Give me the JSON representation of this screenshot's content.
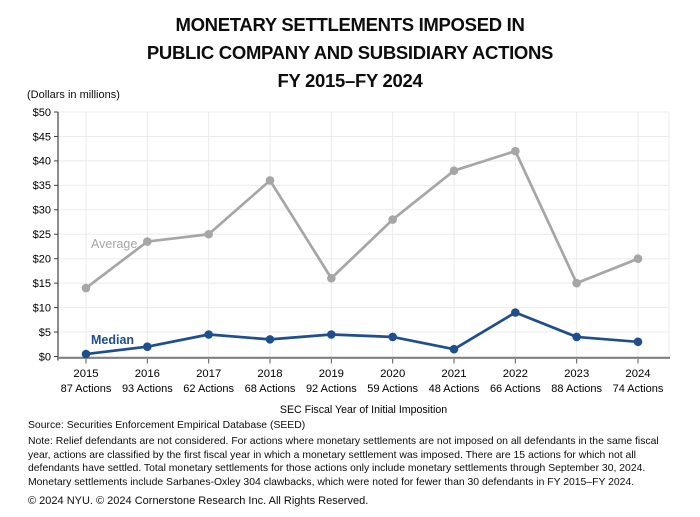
{
  "title": {
    "line1": "MONETARY SETTLEMENTS IMPOSED IN",
    "line2": "PUBLIC COMPANY AND SUBSIDIARY ACTIONS",
    "line3": "FY 2015–FY 2024"
  },
  "units_label": "(Dollars in millions)",
  "chart_data": {
    "type": "line",
    "title": "Monetary Settlements Imposed in Public Company and Subsidiary Actions FY 2015–FY 2024",
    "categories": [
      "2015",
      "2016",
      "2017",
      "2018",
      "2019",
      "2020",
      "2021",
      "2022",
      "2023",
      "2024"
    ],
    "category_sublabels": [
      "87 Actions",
      "93 Actions",
      "62 Actions",
      "68 Actions",
      "92 Actions",
      "59 Actions",
      "48 Actions",
      "66 Actions",
      "88 Actions",
      "74 Actions"
    ],
    "series": [
      {
        "name": "Average",
        "color": "#A6A6A6",
        "values": [
          14,
          23.5,
          25,
          36,
          16,
          28,
          38,
          42,
          15,
          20
        ]
      },
      {
        "name": "Median",
        "color": "#1F4E8C",
        "values": [
          0.5,
          2,
          4.5,
          3.5,
          4.5,
          4,
          1.5,
          9,
          4,
          3
        ]
      }
    ],
    "xlabel": "SEC Fiscal Year of Initial Imposition",
    "ylabel": "(Dollars in millions)",
    "ylim": [
      0,
      50
    ],
    "ytick_step": 5,
    "ytick_prefix": "$",
    "grid": true,
    "legend": "inline series labels left of lines"
  },
  "footer": {
    "source": "Source: Securities Enforcement Empirical Database (SEED)",
    "note": "Note: Relief defendants are not considered. For actions where monetary settlements are not imposed on all defendants in the same fiscal year, actions are classified by the first fiscal year in which a monetary settlement was imposed. There are 15 actions for which not all defendants have settled. Total monetary settlements for those actions only include monetary settlements through September 30, 2024. Monetary settlements include Sarbanes-Oxley 304 clawbacks, which were noted for fewer than 30 defendants in FY 2015–FY 2024.",
    "copyright": "© 2024 NYU. © 2024 Cornerstone Research Inc. All Rights Reserved."
  },
  "colors": {
    "average_series": "#A6A6A6",
    "median_series": "#1F4E8C",
    "gridline": "#EBEBEB",
    "x_axis": "#808080",
    "y_axis": "#404040",
    "tick": "#595959",
    "text": "#000000"
  }
}
